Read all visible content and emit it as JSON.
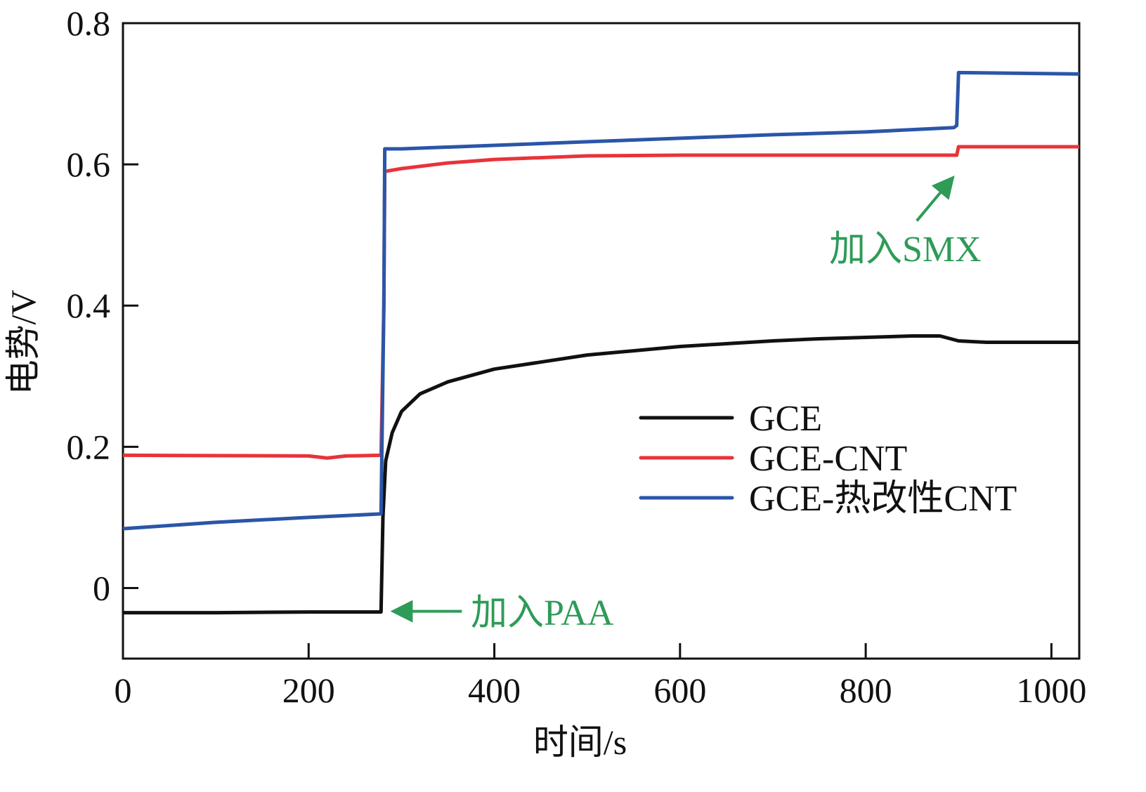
{
  "chart_data": {
    "type": "line",
    "xlabel": "时间/s",
    "ylabel": "电势/V",
    "xlim": [
      0,
      1030
    ],
    "ylim": [
      -0.1,
      0.8
    ],
    "x_ticks": [
      0,
      200,
      400,
      600,
      800,
      1000
    ],
    "y_ticks": [
      0,
      0.2,
      0.4,
      0.6,
      0.8
    ],
    "x_tick_labels": [
      "0",
      "200",
      "400",
      "600",
      "800",
      "1000"
    ],
    "y_tick_labels": [
      "0",
      "0.2",
      "0.4",
      "0.6",
      "0.8"
    ],
    "legend_position": "center-right",
    "series": [
      {
        "name": "GCE",
        "color": "#111111",
        "points": [
          [
            0,
            -0.035
          ],
          [
            100,
            -0.035
          ],
          [
            200,
            -0.034
          ],
          [
            278,
            -0.034
          ],
          [
            280,
            0.1
          ],
          [
            283,
            0.18
          ],
          [
            290,
            0.22
          ],
          [
            300,
            0.25
          ],
          [
            320,
            0.275
          ],
          [
            350,
            0.292
          ],
          [
            400,
            0.31
          ],
          [
            450,
            0.32
          ],
          [
            500,
            0.33
          ],
          [
            550,
            0.336
          ],
          [
            600,
            0.342
          ],
          [
            650,
            0.346
          ],
          [
            700,
            0.35
          ],
          [
            750,
            0.353
          ],
          [
            800,
            0.355
          ],
          [
            850,
            0.357
          ],
          [
            880,
            0.357
          ],
          [
            900,
            0.35
          ],
          [
            930,
            0.348
          ],
          [
            1030,
            0.348
          ]
        ]
      },
      {
        "name": "GCE-CNT",
        "color": "#e8333a",
        "points": [
          [
            0,
            0.188
          ],
          [
            200,
            0.187
          ],
          [
            220,
            0.184
          ],
          [
            240,
            0.187
          ],
          [
            278,
            0.188
          ],
          [
            281,
            0.4
          ],
          [
            282,
            0.59
          ],
          [
            300,
            0.594
          ],
          [
            350,
            0.602
          ],
          [
            400,
            0.607
          ],
          [
            500,
            0.612
          ],
          [
            600,
            0.613
          ],
          [
            700,
            0.613
          ],
          [
            800,
            0.613
          ],
          [
            898,
            0.613
          ],
          [
            900,
            0.625
          ],
          [
            1030,
            0.625
          ]
        ]
      },
      {
        "name": "GCE-热改性CNT",
        "color": "#2a56a8",
        "points": [
          [
            0,
            0.084
          ],
          [
            100,
            0.093
          ],
          [
            200,
            0.1
          ],
          [
            278,
            0.105
          ],
          [
            281,
            0.4
          ],
          [
            282,
            0.622
          ],
          [
            300,
            0.622
          ],
          [
            400,
            0.627
          ],
          [
            500,
            0.632
          ],
          [
            600,
            0.637
          ],
          [
            700,
            0.642
          ],
          [
            800,
            0.646
          ],
          [
            895,
            0.652
          ],
          [
            898,
            0.655
          ],
          [
            900,
            0.73
          ],
          [
            1030,
            0.728
          ]
        ]
      }
    ],
    "annotations": [
      {
        "text": "加入PAA",
        "color": "#2e9b57",
        "arrow_from": [
          365,
          -0.033
        ],
        "arrow_to": [
          300,
          -0.033
        ]
      },
      {
        "text": "加入SMX",
        "color": "#2e9b57",
        "arrow_from": [
          855,
          0.52
        ],
        "arrow_to": [
          888,
          0.572
        ]
      }
    ]
  }
}
